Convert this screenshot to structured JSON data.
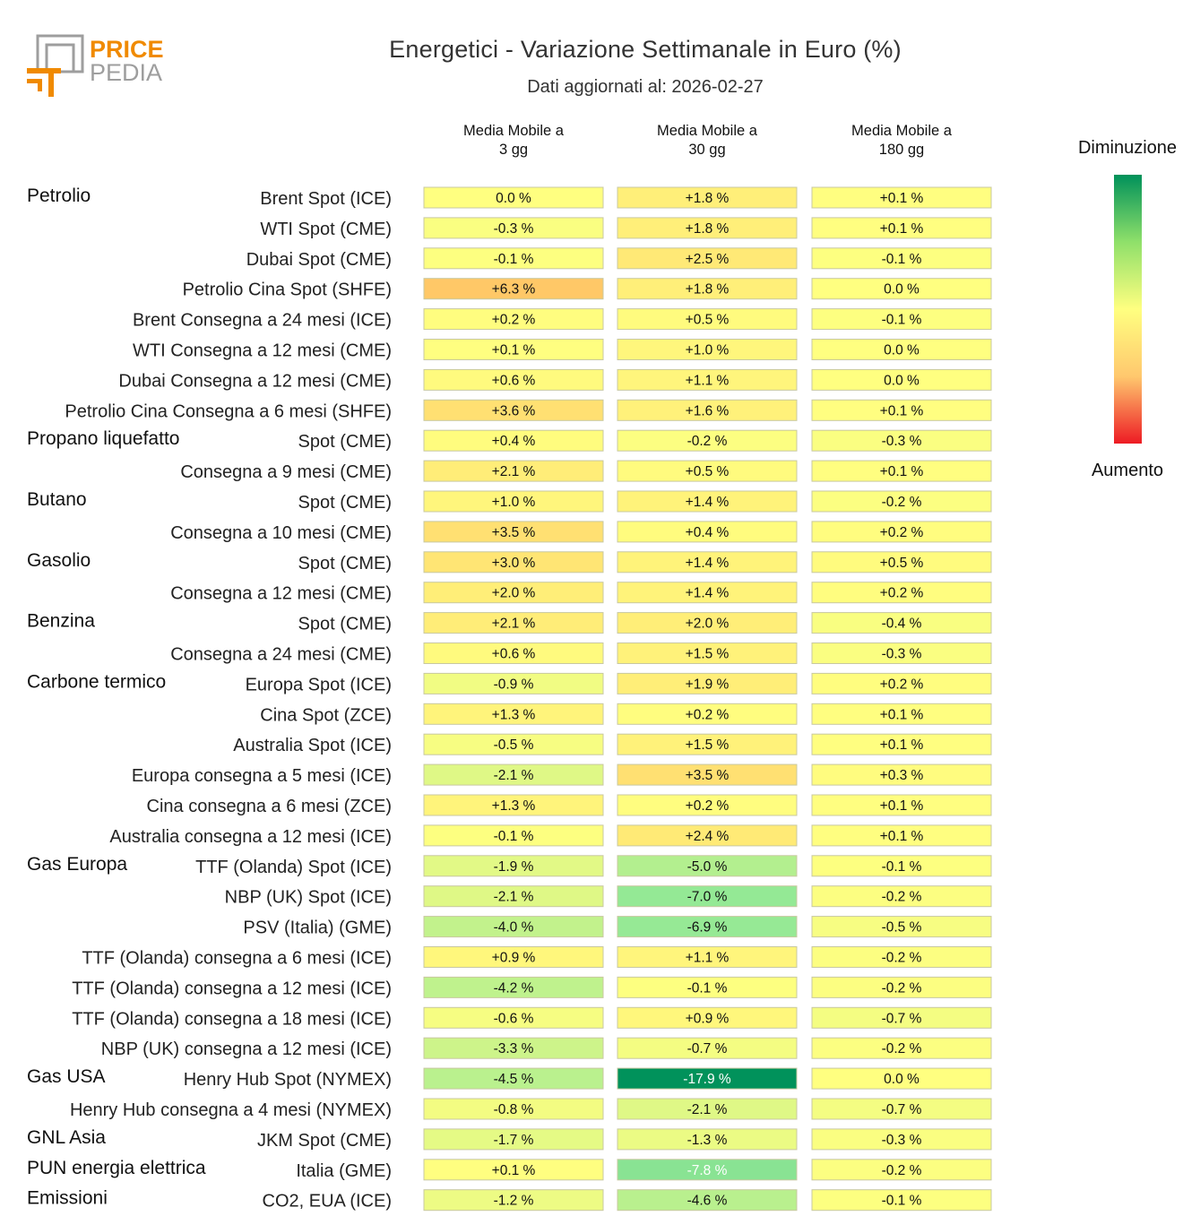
{
  "logo": {
    "word1": "PRICE",
    "word2": "PEDIA",
    "accent": "#F08A00",
    "gray": "#9E9E9E"
  },
  "chart_data": {
    "type": "heatmap",
    "title": "Energetici - Variazione Settimanale in Euro (%)",
    "subtitle": "Dati aggiornati al: 2026-02-27",
    "columns": [
      {
        "line1": "Media Mobile a",
        "line2": "3 gg"
      },
      {
        "line1": "Media Mobile a",
        "line2": "30 gg"
      },
      {
        "line1": "Media Mobile a",
        "line2": "180 gg"
      }
    ],
    "legend": {
      "top": "Diminuzione",
      "bottom": "Aumento"
    },
    "groups": [
      {
        "name": "Petrolio",
        "rows": [
          {
            "label": "Brent Spot (ICE)",
            "values": [
              0.0,
              1.8,
              0.1
            ],
            "texts": [
              "0.0 %",
              "+1.8 %",
              "+0.1 %"
            ]
          },
          {
            "label": "WTI Spot (CME)",
            "values": [
              -0.3,
              1.8,
              0.1
            ],
            "texts": [
              "-0.3 %",
              "+1.8 %",
              "+0.1 %"
            ]
          },
          {
            "label": "Dubai Spot (CME)",
            "values": [
              -0.1,
              2.5,
              -0.1
            ],
            "texts": [
              "-0.1 %",
              "+2.5 %",
              "-0.1 %"
            ]
          },
          {
            "label": "Petrolio Cina Spot (SHFE)",
            "values": [
              6.3,
              1.8,
              0.0
            ],
            "texts": [
              "+6.3 %",
              "+1.8 %",
              "0.0 %"
            ]
          },
          {
            "label": "Brent Consegna a 24 mesi (ICE)",
            "values": [
              0.2,
              0.5,
              -0.1
            ],
            "texts": [
              "+0.2 %",
              "+0.5 %",
              "-0.1 %"
            ]
          },
          {
            "label": "WTI Consegna a 12 mesi (CME)",
            "values": [
              0.1,
              1.0,
              0.0
            ],
            "texts": [
              "+0.1 %",
              "+1.0 %",
              "0.0 %"
            ]
          },
          {
            "label": "Dubai Consegna a 12 mesi (CME)",
            "values": [
              0.6,
              1.1,
              0.0
            ],
            "texts": [
              "+0.6 %",
              "+1.1 %",
              "0.0 %"
            ]
          },
          {
            "label": "Petrolio Cina Consegna a 6 mesi (SHFE)",
            "values": [
              3.6,
              1.6,
              0.1
            ],
            "texts": [
              "+3.6 %",
              "+1.6 %",
              "+0.1 %"
            ]
          }
        ]
      },
      {
        "name": "Propano liquefatto",
        "rows": [
          {
            "label": "Spot (CME)",
            "values": [
              0.4,
              -0.2,
              -0.3
            ],
            "texts": [
              "+0.4 %",
              "-0.2 %",
              "-0.3 %"
            ]
          },
          {
            "label": "Consegna a 9 mesi (CME)",
            "values": [
              2.1,
              0.5,
              0.1
            ],
            "texts": [
              "+2.1 %",
              "+0.5 %",
              "+0.1 %"
            ]
          }
        ]
      },
      {
        "name": "Butano",
        "rows": [
          {
            "label": "Spot (CME)",
            "values": [
              1.0,
              1.4,
              -0.2
            ],
            "texts": [
              "+1.0 %",
              "+1.4 %",
              "-0.2 %"
            ]
          },
          {
            "label": "Consegna a 10 mesi (CME)",
            "values": [
              3.5,
              0.4,
              0.2
            ],
            "texts": [
              "+3.5 %",
              "+0.4 %",
              "+0.2 %"
            ]
          }
        ]
      },
      {
        "name": "Gasolio",
        "rows": [
          {
            "label": "Spot (CME)",
            "values": [
              3.0,
              1.4,
              0.5
            ],
            "texts": [
              "+3.0 %",
              "+1.4 %",
              "+0.5 %"
            ]
          },
          {
            "label": "Consegna a 12 mesi (CME)",
            "values": [
              2.0,
              1.4,
              0.2
            ],
            "texts": [
              "+2.0 %",
              "+1.4 %",
              "+0.2 %"
            ]
          }
        ]
      },
      {
        "name": "Benzina",
        "rows": [
          {
            "label": "Spot (CME)",
            "values": [
              2.1,
              2.0,
              -0.4
            ],
            "texts": [
              "+2.1 %",
              "+2.0 %",
              "-0.4 %"
            ]
          },
          {
            "label": "Consegna a 24 mesi (CME)",
            "values": [
              0.6,
              1.5,
              -0.3
            ],
            "texts": [
              "+0.6 %",
              "+1.5 %",
              "-0.3 %"
            ]
          }
        ]
      },
      {
        "name": "Carbone termico",
        "rows": [
          {
            "label": "Europa Spot (ICE)",
            "values": [
              -0.9,
              1.9,
              0.2
            ],
            "texts": [
              "-0.9 %",
              "+1.9 %",
              "+0.2 %"
            ]
          },
          {
            "label": "Cina Spot (ZCE)",
            "values": [
              1.3,
              0.2,
              0.1
            ],
            "texts": [
              "+1.3 %",
              "+0.2 %",
              "+0.1 %"
            ]
          },
          {
            "label": "Australia Spot (ICE)",
            "values": [
              -0.5,
              1.5,
              0.1
            ],
            "texts": [
              "-0.5 %",
              "+1.5 %",
              "+0.1 %"
            ]
          },
          {
            "label": "Europa consegna a 5 mesi (ICE)",
            "values": [
              -2.1,
              3.5,
              0.3
            ],
            "texts": [
              "-2.1 %",
              "+3.5 %",
              "+0.3 %"
            ]
          },
          {
            "label": "Cina consegna a 6 mesi (ZCE)",
            "values": [
              1.3,
              0.2,
              0.1
            ],
            "texts": [
              "+1.3 %",
              "+0.2 %",
              "+0.1 %"
            ]
          },
          {
            "label": "Australia consegna a 12 mesi (ICE)",
            "values": [
              -0.1,
              2.4,
              0.1
            ],
            "texts": [
              "-0.1 %",
              "+2.4 %",
              "+0.1 %"
            ]
          }
        ]
      },
      {
        "name": "Gas Europa",
        "rows": [
          {
            "label": "TTF (Olanda) Spot (ICE)",
            "values": [
              -1.9,
              -5.0,
              -0.1
            ],
            "texts": [
              "-1.9 %",
              "-5.0 %",
              "-0.1 %"
            ]
          },
          {
            "label": "NBP (UK) Spot (ICE)",
            "values": [
              -2.1,
              -7.0,
              -0.2
            ],
            "texts": [
              "-2.1 %",
              "-7.0 %",
              "-0.2 %"
            ]
          },
          {
            "label": "PSV (Italia) (GME)",
            "values": [
              -4.0,
              -6.9,
              -0.5
            ],
            "texts": [
              "-4.0 %",
              "-6.9 %",
              "-0.5 %"
            ]
          },
          {
            "label": "TTF (Olanda) consegna a 6 mesi (ICE)",
            "values": [
              0.9,
              1.1,
              -0.2
            ],
            "texts": [
              "+0.9 %",
              "+1.1 %",
              "-0.2 %"
            ]
          },
          {
            "label": "TTF (Olanda) consegna a 12 mesi (ICE)",
            "values": [
              -4.2,
              -0.1,
              -0.2
            ],
            "texts": [
              "-4.2 %",
              "-0.1 %",
              "-0.2 %"
            ]
          },
          {
            "label": "TTF (Olanda) consegna a 18 mesi (ICE)",
            "values": [
              -0.6,
              0.9,
              -0.7
            ],
            "texts": [
              "-0.6 %",
              "+0.9 %",
              "-0.7 %"
            ]
          },
          {
            "label": "NBP (UK) consegna a 12 mesi (ICE)",
            "values": [
              -3.3,
              -0.7,
              -0.2
            ],
            "texts": [
              "-3.3 %",
              "-0.7 %",
              "-0.2 %"
            ]
          }
        ]
      },
      {
        "name": "Gas USA",
        "rows": [
          {
            "label": "Henry Hub Spot (NYMEX)",
            "values": [
              -4.5,
              -17.9,
              0.0
            ],
            "texts": [
              "-4.5 %",
              "-17.9 %",
              "0.0 %"
            ]
          },
          {
            "label": "Henry Hub consegna a 4 mesi (NYMEX)",
            "values": [
              -0.8,
              -2.1,
              -0.7
            ],
            "texts": [
              "-0.8 %",
              "-2.1 %",
              "-0.7 %"
            ]
          }
        ]
      },
      {
        "name": "GNL Asia",
        "rows": [
          {
            "label": "JKM Spot (CME)",
            "values": [
              -1.7,
              -1.3,
              -0.3
            ],
            "texts": [
              "-1.7 %",
              "-1.3 %",
              "-0.3 %"
            ]
          }
        ]
      },
      {
        "name": "PUN energia elettrica",
        "rows": [
          {
            "label": "Italia (GME)",
            "values": [
              0.1,
              -7.8,
              -0.2
            ],
            "texts": [
              "+0.1 %",
              "-7.8 %",
              "-0.2 %"
            ]
          }
        ]
      },
      {
        "name": "Emissioni",
        "rows": [
          {
            "label": "CO2, EUA (ICE)",
            "values": [
              -1.2,
              -4.6,
              -0.1
            ],
            "texts": [
              "-1.2 %",
              "-4.6 %",
              "-0.1 %"
            ]
          }
        ]
      }
    ]
  }
}
